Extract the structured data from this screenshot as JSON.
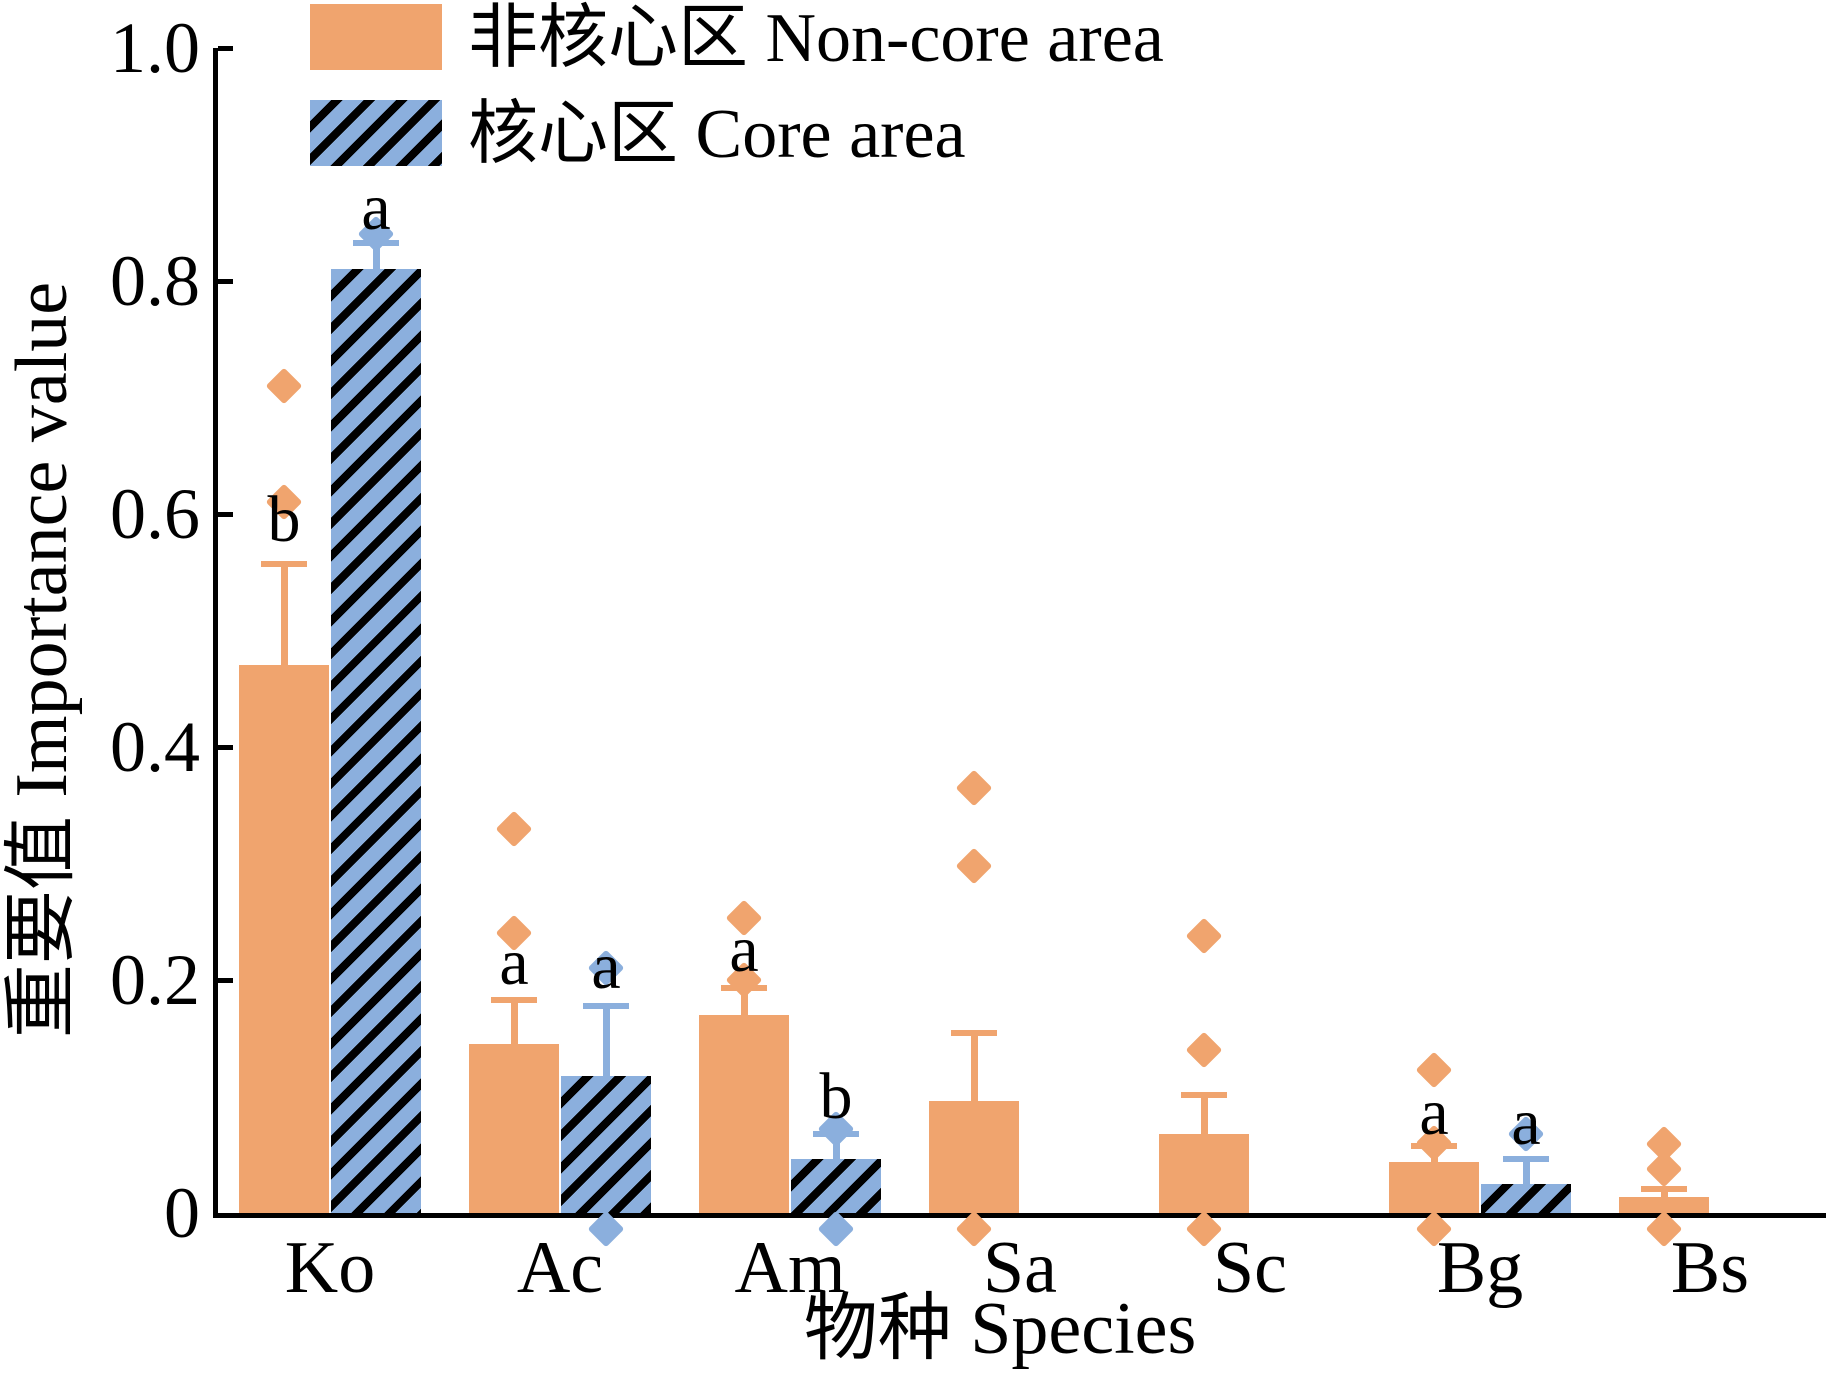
{
  "legend": {
    "items": [
      {
        "label": "非核心区 Non-core area",
        "series": "noncore",
        "color": "#F0A46E",
        "hatch": false
      },
      {
        "label": "核心区 Core area",
        "series": "core",
        "color": "#8BAFDD",
        "hatch": true
      }
    ]
  },
  "axes": {
    "y_title": "重要值 Importance value",
    "x_title": "物种 Species",
    "y_tick_labels": [
      "1.0",
      "0.8",
      "0.6",
      "0.4",
      "0.2",
      "0"
    ],
    "y_tick_values": [
      1.0,
      0.8,
      0.6,
      0.4,
      0.2,
      0
    ]
  },
  "colors": {
    "noncore": "#F0A46E",
    "core": "#8BAFDD",
    "hatch_line": "#000000",
    "axis": "#000000"
  },
  "chart_data": {
    "type": "bar",
    "title": "",
    "xlabel": "物种 Species",
    "ylabel": "重要值 Importance value",
    "categories": [
      "Ko",
      "Ac",
      "Am",
      "Sa",
      "Sc",
      "Bg",
      "Bs"
    ],
    "ylim": [
      0,
      1.0
    ],
    "grid": false,
    "legend_position": "top-left",
    "series": [
      {
        "name": "非核心区 Non-core area",
        "color": "#F0A46E",
        "hatch": false,
        "values": [
          0.47,
          0.145,
          0.17,
          0.096,
          0.068,
          0.044,
          0.014
        ],
        "error_tops": [
          0.56,
          0.185,
          0.196,
          0.157,
          0.104,
          0.06,
          0.023
        ],
        "sig_letters": [
          "b",
          "a",
          "a",
          "",
          "",
          "a",
          ""
        ],
        "sig_letter_y": [
          0.595,
          0.215,
          0.226,
          null,
          null,
          0.086,
          null
        ],
        "points": [
          [
            0.71,
            0.61
          ],
          [
            0.33,
            0.24
          ],
          [
            0.253,
            0.2
          ],
          [
            0.365,
            0.298,
            0
          ],
          [
            0.238,
            0.14,
            0
          ],
          [
            0.123,
            0.06,
            0
          ],
          [
            0.059,
            0.038,
            0
          ]
        ]
      },
      {
        "name": "核心区 Core area",
        "color": "#8BAFDD",
        "hatch": true,
        "values": [
          0.81,
          0.118,
          0.046,
          0,
          0,
          0.025,
          0
        ],
        "error_tops": [
          0.835,
          0.18,
          0.07,
          null,
          null,
          0.049,
          null
        ],
        "sig_letters": [
          "a",
          "a",
          "b",
          "",
          "",
          "a",
          ""
        ],
        "sig_letter_y": [
          0.863,
          0.211,
          0.1,
          null,
          null,
          0.077,
          null
        ],
        "points": [
          [
            0.84
          ],
          [
            0.21,
            0
          ],
          [
            0.072,
            0
          ],
          [],
          [],
          [
            0.068
          ],
          []
        ]
      }
    ]
  }
}
